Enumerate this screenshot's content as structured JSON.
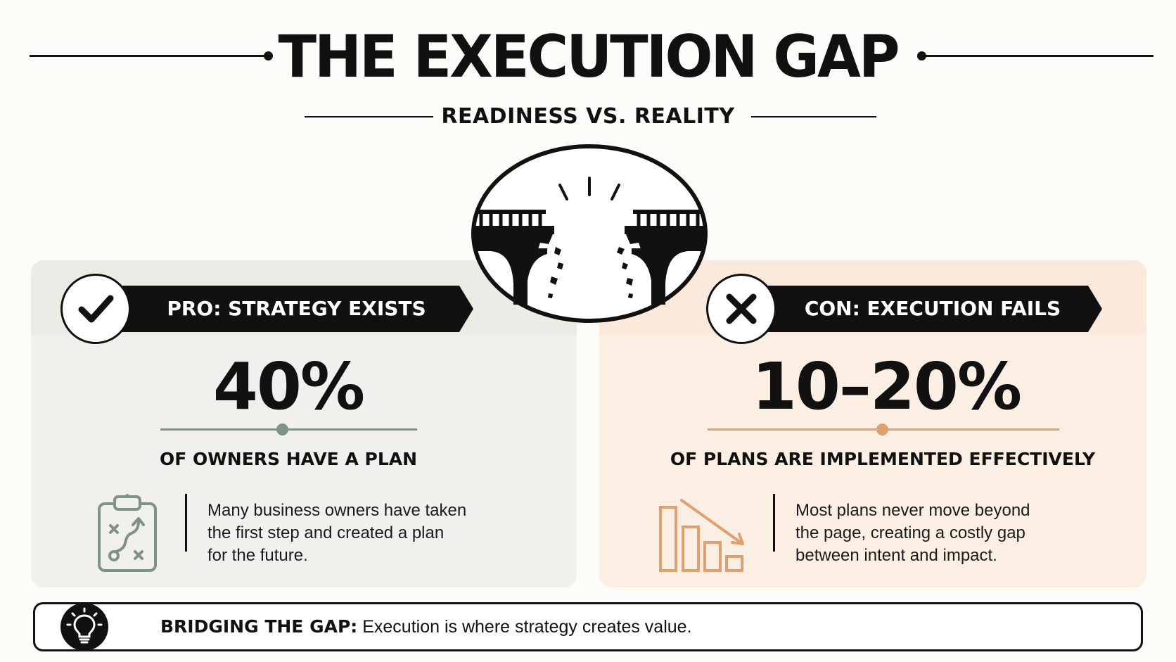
{
  "header": {
    "title": "THE EXECUTION GAP",
    "subtitle": "READINESS VS. REALITY"
  },
  "pro": {
    "banner": "PRO: STRATEGY EXISTS",
    "stat": "40%",
    "caption": "OF OWNERS HAVE A PLAN",
    "description_lines": [
      "Many business owners have taken",
      "the first step and created a plan",
      "for the future."
    ],
    "accent_color": "#7f9283",
    "icon": "clipboard-strategy-icon"
  },
  "con": {
    "banner": "CON: EXECUTION FAILS",
    "stat": "10–20%",
    "caption": "OF PLANS ARE IMPLEMENTED EFFECTIVELY",
    "description_lines": [
      "Most plans never move beyond",
      "the page, creating a costly gap",
      "between intent and impact."
    ],
    "accent_color": "#e0a170",
    "icon": "declining-bar-chart-icon"
  },
  "footer": {
    "label": "BRIDGING THE GAP:",
    "text": " Execution is where strategy creates value.",
    "icon": "lightbulb-icon"
  },
  "center_illustration": "broken-bridge-icon"
}
